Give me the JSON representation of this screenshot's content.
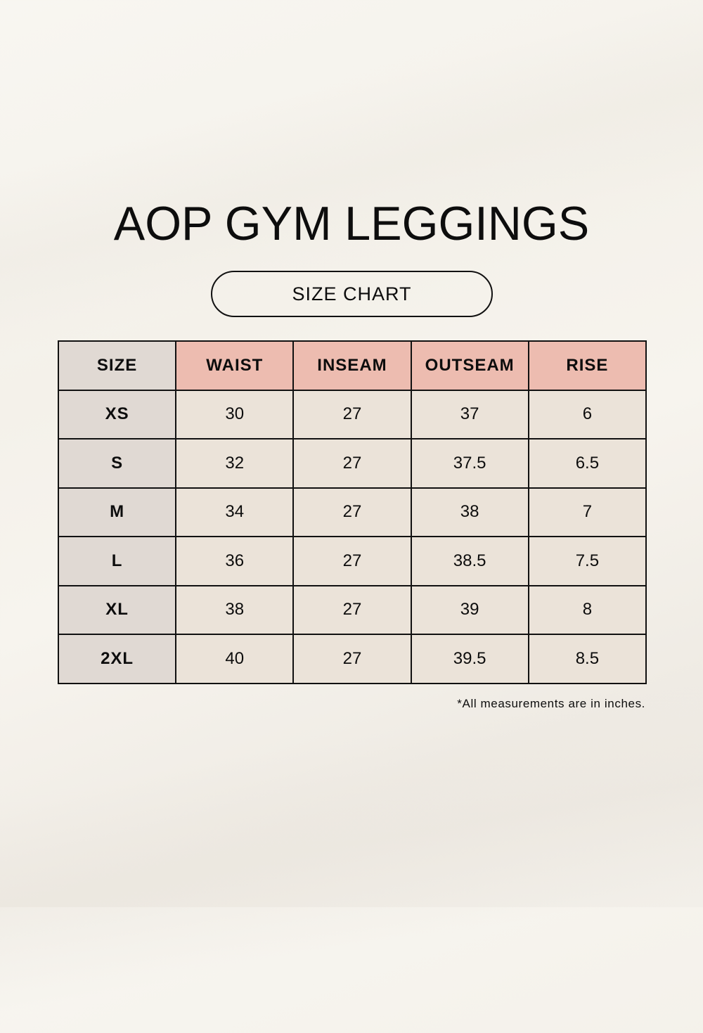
{
  "title": "AOP GYM LEGGINGS",
  "subtitle": "SIZE CHART",
  "table": {
    "headers": [
      "SIZE",
      "WAIST",
      "INSEAM",
      "OUTSEAM",
      "RISE"
    ],
    "rows": [
      {
        "size": "XS",
        "waist": "30",
        "inseam": "27",
        "outseam": "37",
        "rise": "6"
      },
      {
        "size": "S",
        "waist": "32",
        "inseam": "27",
        "outseam": "37.5",
        "rise": "6.5"
      },
      {
        "size": "M",
        "waist": "34",
        "inseam": "27",
        "outseam": "38",
        "rise": "7"
      },
      {
        "size": "L",
        "waist": "36",
        "inseam": "27",
        "outseam": "38.5",
        "rise": "7.5"
      },
      {
        "size": "XL",
        "waist": "38",
        "inseam": "27",
        "outseam": "39",
        "rise": "8"
      },
      {
        "size": "2XL",
        "waist": "40",
        "inseam": "27",
        "outseam": "39.5",
        "rise": "8.5"
      }
    ]
  },
  "note": "*All measurements are in inches.",
  "colors": {
    "header_accent": "#edbcb0",
    "size_column": "#e0d9d3",
    "cell_background": "#ebe3d9",
    "border": "#111111",
    "page_background": "#f6f3ed"
  }
}
